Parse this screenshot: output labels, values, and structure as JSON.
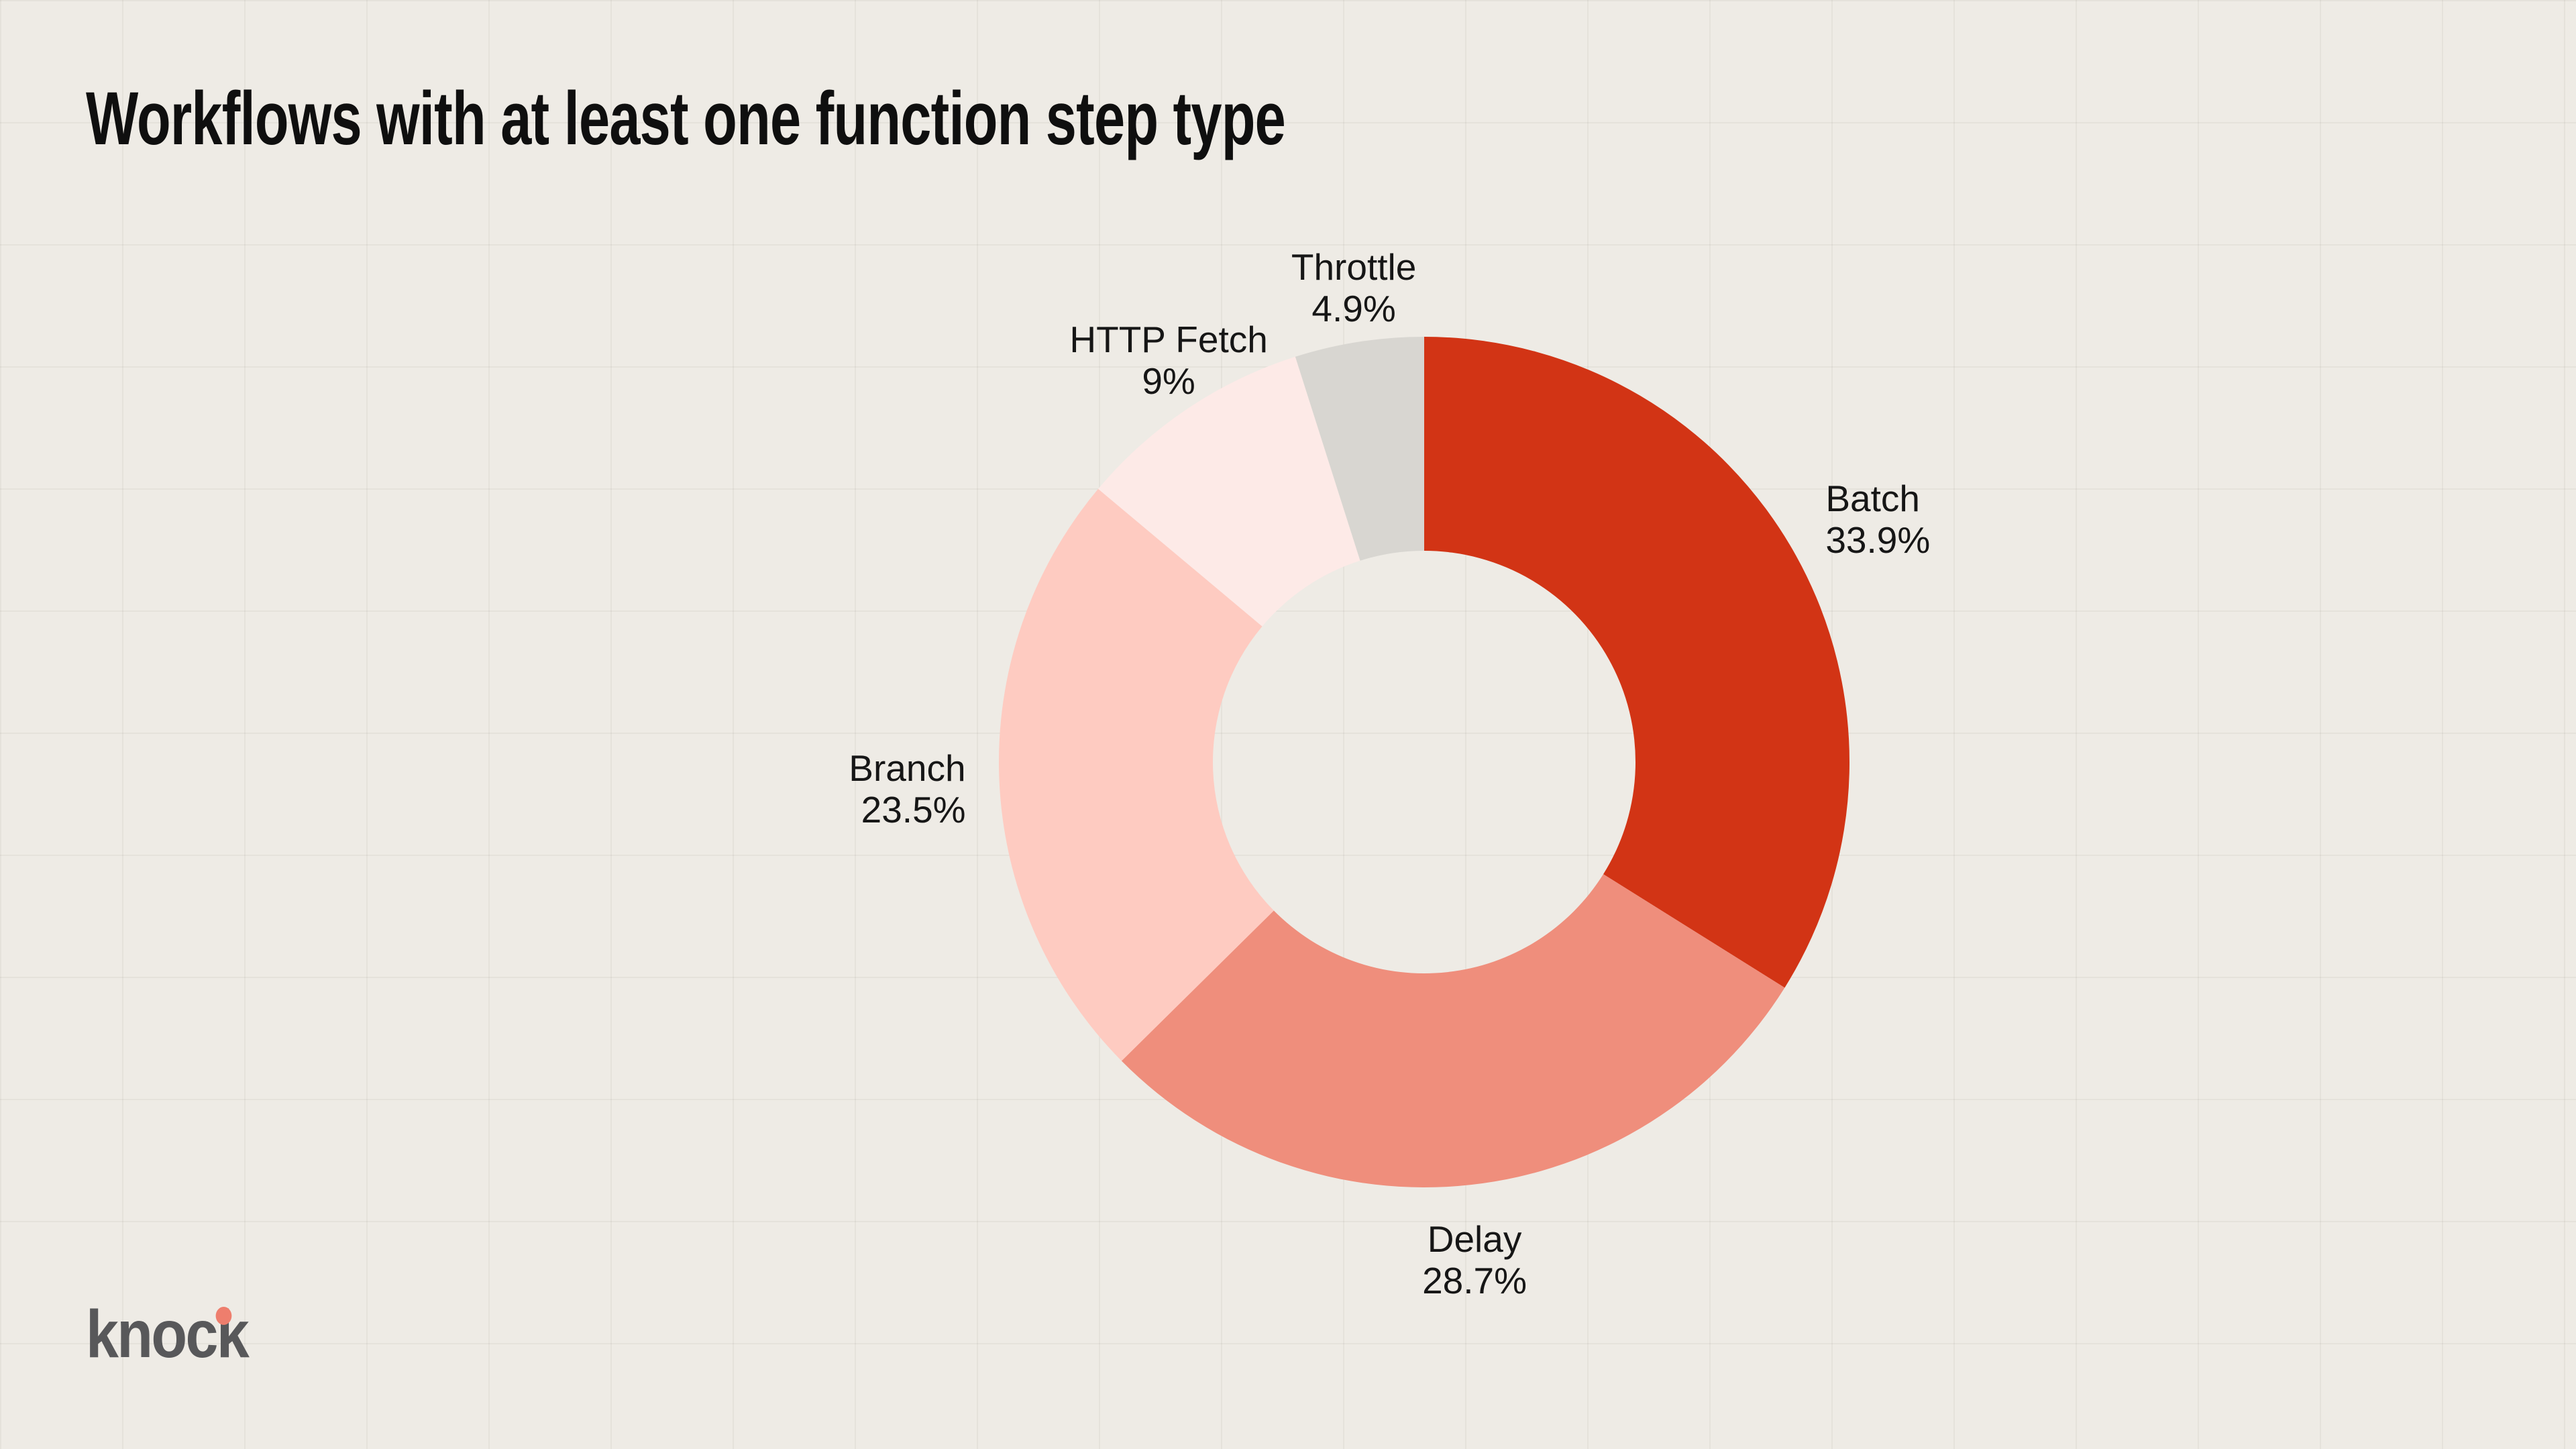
{
  "chart_data": {
    "type": "pie",
    "subtype": "donut",
    "title": "Workflows with at least one function step type",
    "start_angle_deg": 0,
    "direction": "clockwise",
    "inner_radius_ratio": 0.497,
    "legend_position": "none",
    "labels_position": "outside",
    "grid": true,
    "series": [
      {
        "name": "Batch",
        "value": 33.9,
        "value_label": "33.9%",
        "color": "#d23415"
      },
      {
        "name": "Delay",
        "value": 28.7,
        "value_label": "28.7%",
        "color": "#ef8e7c"
      },
      {
        "name": "Branch",
        "value": 23.5,
        "value_label": "23.5%",
        "color": "#fecbc1"
      },
      {
        "name": "HTTP Fetch",
        "value": 9,
        "value_label": "9%",
        "color": "#fdeae7"
      },
      {
        "name": "Throttle",
        "value": 4.9,
        "value_label": "4.9%",
        "color": "#d8d6d1"
      }
    ]
  },
  "brand": {
    "logo_text": "knock",
    "logo_color": "#58585a",
    "logo_dot_color": "#ee7e6d"
  },
  "colors": {
    "background": "#eeebe5",
    "grid_line": "rgba(75,65,50,0.055)",
    "title_text": "#0f0f0f",
    "label_text": "#161616"
  }
}
